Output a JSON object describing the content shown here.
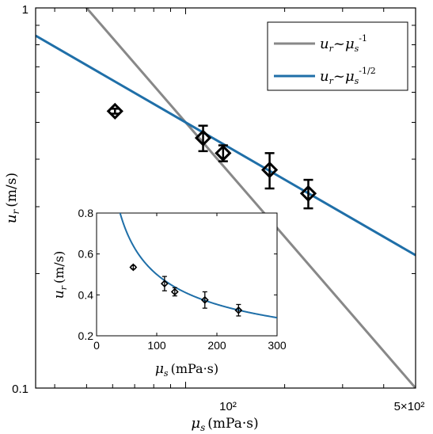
{
  "chart_data": [
    {
      "type": "scatter",
      "xscale": "log",
      "yscale": "log",
      "xlim": [
        35,
        500
      ],
      "ylim": [
        0.1,
        1
      ],
      "xticklabels": [
        "10²",
        "5×10²"
      ],
      "xtick_values": [
        100,
        500
      ],
      "yticklabels": [
        "0.1",
        "1"
      ],
      "ytick_values": [
        0.1,
        1
      ],
      "xlabel": {
        "symbol": "μ",
        "sub": "s",
        "units": "(mPa·s)"
      },
      "ylabel": {
        "symbol": "u",
        "sub": "r",
        "units": "(m/s)"
      },
      "series": [
        {
          "kind": "points",
          "marker": "diamond",
          "x": [
            61,
            113,
            130,
            180,
            236
          ],
          "y": [
            0.535,
            0.455,
            0.415,
            0.375,
            0.325
          ],
          "err": [
            0.008,
            0.035,
            0.02,
            0.04,
            0.028
          ],
          "color": "#000000"
        },
        {
          "kind": "line",
          "name_prefix": "u",
          "name_sub": "r",
          "name_mid": "~μ",
          "name_sub2": "s",
          "name_exp": "-1",
          "exponent": -1,
          "through": [
            125,
            0.4
          ],
          "color": "#888888"
        },
        {
          "kind": "line",
          "name_prefix": "u",
          "name_sub": "r",
          "name_mid": "~μ",
          "name_sub2": "s",
          "name_exp": "-1/2",
          "exponent": -0.5,
          "through": [
            100,
            0.5
          ],
          "color": "#1f6fa8"
        }
      ],
      "legend_position": "top-right",
      "grid": false
    },
    {
      "type": "scatter",
      "inset": true,
      "xscale": "linear",
      "yscale": "linear",
      "xlim": [
        0,
        300
      ],
      "ylim": [
        0.2,
        0.8
      ],
      "xticks": [
        0,
        100,
        200,
        300
      ],
      "xticklabels": [
        "0",
        "100",
        "200",
        "300"
      ],
      "yticks": [
        0.2,
        0.4,
        0.6,
        0.8
      ],
      "yticklabels": [
        "0.2",
        "0.4",
        "0.6",
        "0.8"
      ],
      "xlabel": {
        "symbol": "μ",
        "sub": "s",
        "units": "(mPa·s)"
      },
      "ylabel": {
        "symbol": "u",
        "sub": "r",
        "units": "(m/s)"
      },
      "series": [
        {
          "kind": "points",
          "marker": "diamond",
          "x": [
            61,
            113,
            130,
            180,
            236
          ],
          "y": [
            0.535,
            0.455,
            0.415,
            0.375,
            0.325
          ],
          "err": [
            0.008,
            0.035,
            0.02,
            0.04,
            0.028
          ],
          "color": "#000000"
        },
        {
          "kind": "curve",
          "exponent": -0.5,
          "through": [
            100,
            0.5
          ],
          "color": "#1f6fa8"
        }
      ],
      "grid": false
    }
  ]
}
